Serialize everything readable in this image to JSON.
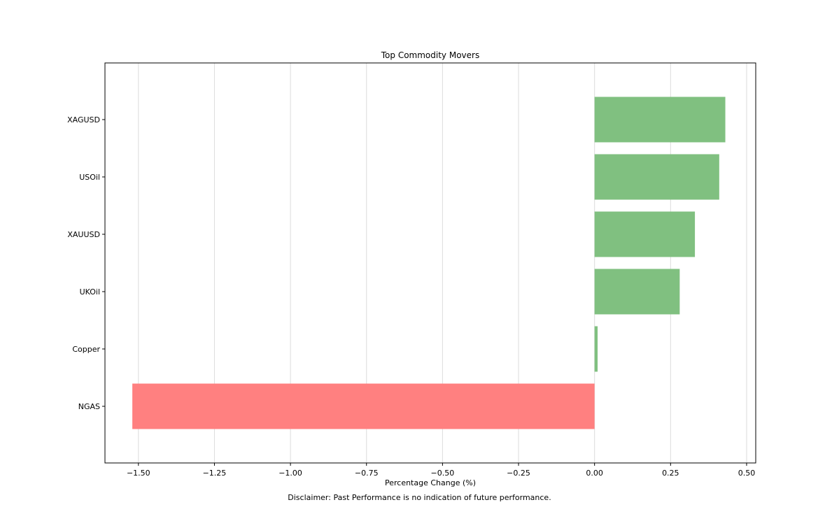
{
  "chart_data": {
    "type": "bar",
    "orientation": "horizontal",
    "title": "Top Commodity Movers",
    "xlabel": "Percentage Change (%)",
    "ylabel": "",
    "categories": [
      "XAGUSD",
      "USOil",
      "XAUUSD",
      "UKOil",
      "Copper",
      "NGAS"
    ],
    "values": [
      0.43,
      0.41,
      0.33,
      0.28,
      0.01,
      -1.52
    ],
    "xlim": [
      -1.61,
      0.53
    ],
    "xticks": [
      -1.5,
      -1.25,
      -1.0,
      -0.75,
      -0.5,
      -0.25,
      0.0,
      0.25,
      0.5
    ],
    "xtick_labels": [
      "−1.50",
      "−1.25",
      "−1.00",
      "−0.75",
      "−0.50",
      "−0.25",
      "0.00",
      "0.25",
      "0.50"
    ],
    "grid": "vertical",
    "colors": {
      "positive": "#80c080",
      "negative": "#ff8080",
      "grid": "#dcdcdc",
      "axes": "#000000"
    }
  },
  "disclaimer": "Disclaimer: Past Performance is no indication of future performance."
}
